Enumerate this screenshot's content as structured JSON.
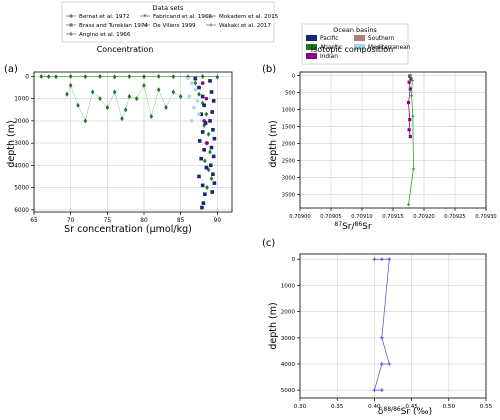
{
  "legends": {
    "datasets": {
      "title": "Data sets",
      "entries": [
        {
          "label": "Bernat et al. 1972",
          "marker": "circle",
          "color": "#777777"
        },
        {
          "label": "Brass and Turekian 1974",
          "marker": "square",
          "color": "#777777"
        },
        {
          "label": "Angino et al. 1966",
          "marker": "diamond",
          "color": "#777777"
        },
        {
          "label": "Fabricand et al. 1968",
          "marker": "triangle-down",
          "color": "#777777"
        },
        {
          "label": "De Viliers 1999",
          "marker": "triangle-up",
          "color": "#777777"
        },
        {
          "label": "Mokadem et al. 2015",
          "marker": "tri",
          "color": "#777777"
        },
        {
          "label": "Wakaki et al. 2017",
          "marker": "plus",
          "color": "#777777"
        }
      ]
    },
    "basins": {
      "title": "Ocean basins",
      "entries": [
        {
          "label": "Pacific",
          "color": "#1a237e"
        },
        {
          "label": "Southern",
          "color": "#b07f6f"
        },
        {
          "label": "Atlantic",
          "color": "#1f7a1f"
        },
        {
          "label": "Mediterranean",
          "color": "#aad8e6"
        },
        {
          "label": "Indian",
          "color": "#8b008b"
        }
      ]
    }
  },
  "headings": {
    "concentration": "Concentration",
    "isotopic": "Isotopic composition"
  },
  "panel_labels": {
    "a": "(a)",
    "b": "(b)",
    "c": "(c)"
  },
  "chart_data": [
    {
      "type": "scatter",
      "panel": "(a)",
      "xlabel": "Sr concentration (μmol/kg)",
      "ylabel": "depth (m)",
      "xlim": [
        65,
        92
      ],
      "ylim": [
        6100,
        -200
      ],
      "x_ticks": [
        65,
        70,
        75,
        80,
        85,
        90
      ],
      "y_ticks": [
        0,
        1000,
        2000,
        3000,
        4000,
        5000,
        6000
      ],
      "grid": true,
      "series": [
        {
          "basin": "Atlantic",
          "color": "#1f7a1f",
          "marker": "diamond",
          "points": [
            [
              66,
              0
            ],
            [
              67,
              10
            ],
            [
              68,
              15
            ],
            [
              70,
              0
            ],
            [
              72,
              10
            ],
            [
              74,
              0
            ],
            [
              76,
              20
            ],
            [
              78,
              5
            ],
            [
              80,
              15
            ],
            [
              82,
              0
            ],
            [
              84,
              10
            ],
            [
              86,
              20
            ],
            [
              88,
              0
            ],
            [
              90,
              30
            ],
            [
              69.5,
              800
            ],
            [
              70,
              400
            ],
            [
              71,
              1300
            ],
            [
              72,
              2000
            ],
            [
              73,
              700
            ],
            [
              74,
              1000
            ],
            [
              75,
              1400
            ],
            [
              76,
              700
            ],
            [
              77,
              1900
            ],
            [
              77.5,
              1500
            ],
            [
              78,
              900
            ],
            [
              79,
              1000
            ],
            [
              80,
              400
            ],
            [
              81,
              1800
            ],
            [
              82,
              600
            ],
            [
              83,
              1400
            ],
            [
              84,
              700
            ],
            [
              85,
              900
            ],
            [
              87,
              300
            ],
            [
              87.5,
              800
            ],
            [
              88,
              1200
            ],
            [
              88.5,
              1700
            ],
            [
              88.2,
              2200
            ],
            [
              88.8,
              2600
            ],
            [
              88.5,
              3000
            ],
            [
              89,
              3400
            ],
            [
              88.3,
              3800
            ],
            [
              88.8,
              4200
            ],
            [
              89.2,
              4600
            ],
            [
              88.6,
              5000
            ]
          ]
        },
        {
          "basin": "Pacific",
          "color": "#1a237e",
          "marker": "square",
          "points": [
            [
              87,
              100
            ],
            [
              87.5,
              500
            ],
            [
              88,
              900
            ],
            [
              88.2,
              1300
            ],
            [
              87.8,
              1700
            ],
            [
              88.4,
              2100
            ],
            [
              88,
              2500
            ],
            [
              87.6,
              2900
            ],
            [
              88.2,
              3300
            ],
            [
              87.8,
              3700
            ],
            [
              88.5,
              4100
            ],
            [
              87.5,
              4500
            ],
            [
              88,
              4900
            ],
            [
              88.3,
              5300
            ],
            [
              88.1,
              5700
            ],
            [
              87.9,
              5900
            ],
            [
              89,
              200
            ],
            [
              89.2,
              700
            ],
            [
              89.5,
              1100
            ],
            [
              89.3,
              1600
            ],
            [
              89,
              2000
            ],
            [
              89.4,
              2400
            ],
            [
              89.6,
              2800
            ],
            [
              89.2,
              3200
            ],
            [
              89.5,
              3600
            ],
            [
              89.1,
              4000
            ],
            [
              89.4,
              4400
            ],
            [
              89.6,
              4800
            ],
            [
              89.3,
              5200
            ]
          ]
        },
        {
          "basin": "Mediterranean",
          "color": "#aad8e6",
          "marker": "circle",
          "points": [
            [
              86,
              100
            ],
            [
              86.5,
              300
            ],
            [
              87,
              600
            ],
            [
              86.2,
              900
            ],
            [
              87.3,
              1100
            ],
            [
              86.8,
              1400
            ],
            [
              87.5,
              1700
            ],
            [
              86.5,
              2000
            ]
          ]
        },
        {
          "basin": "Indian",
          "color": "#8b008b",
          "marker": "circle",
          "points": [
            [
              88,
              300
            ],
            [
              88.5,
              1000
            ],
            [
              88.2,
              2000
            ],
            [
              88.6,
              3000
            ]
          ]
        }
      ]
    },
    {
      "type": "line",
      "panel": "(b)",
      "xlabel": "87Sr/86Sr",
      "ylabel": "depth (m)",
      "xlim": [
        0.709,
        0.7093
      ],
      "ylim": [
        3900,
        -100
      ],
      "x_ticks": [
        0.709,
        0.70905,
        0.7091,
        0.70915,
        0.7092,
        0.70925,
        0.7093
      ],
      "x_tick_labels": [
        "0.70900",
        "0.70905",
        "0.70910",
        "0.70915",
        "0.70920",
        "0.70925",
        "0.70930"
      ],
      "y_ticks": [
        0,
        500,
        1000,
        1500,
        2000,
        2500,
        3000,
        3500
      ],
      "grid": true,
      "series": [
        {
          "basin": "Indian",
          "color": "#8b008b",
          "x": [
            0.709177,
            0.709179,
            0.709176,
            0.709178,
            0.709175,
            0.709177,
            0.709176,
            0.709178
          ],
          "y": [
            20,
            100,
            200,
            400,
            800,
            1300,
            1600,
            1800
          ]
        },
        {
          "basin": "Atlantic",
          "color": "#2ca02c",
          "x": [
            0.709178,
            0.709181,
            0.70918,
            0.709182,
            0.709183,
            0.709175
          ],
          "y": [
            0,
            150,
            600,
            1200,
            2750,
            3800
          ]
        }
      ]
    },
    {
      "type": "line",
      "panel": "(c)",
      "xlabel": "δ88/86Sr (‰)",
      "ylabel": "depth (m)",
      "xlim": [
        0.3,
        0.55
      ],
      "ylim": [
        5300,
        -200
      ],
      "x_ticks": [
        0.3,
        0.35,
        0.4,
        0.45,
        0.5,
        0.55
      ],
      "y_ticks": [
        0,
        1000,
        2000,
        3000,
        4000,
        5000
      ],
      "grid": true,
      "series": [
        {
          "color": "#4b4bcc",
          "x": [
            0.4,
            0.41,
            0.42,
            0.41,
            0.42,
            0.41,
            0.4,
            0.41
          ],
          "y": [
            0,
            0,
            0,
            3000,
            4000,
            4000,
            5000,
            5000
          ]
        }
      ]
    }
  ]
}
